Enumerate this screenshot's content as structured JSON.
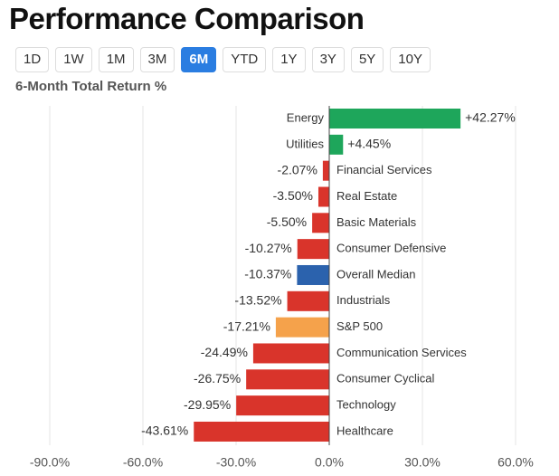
{
  "header": {
    "title": "Performance Comparison"
  },
  "periods": [
    "1D",
    "1W",
    "1M",
    "3M",
    "6M",
    "YTD",
    "1Y",
    "3Y",
    "5Y",
    "10Y"
  ],
  "selected_period": "6M",
  "chart_data": {
    "type": "bar",
    "orientation": "horizontal",
    "title": "6-Month Total Return %",
    "categories": [
      "Energy",
      "Utilities",
      "Financial Services",
      "Real Estate",
      "Basic Materials",
      "Consumer Defensive",
      "Overall Median",
      "Industrials",
      "S&P 500",
      "Communication Services",
      "Consumer Cyclical",
      "Technology",
      "Healthcare"
    ],
    "values": [
      42.27,
      4.45,
      -2.07,
      -3.5,
      -5.5,
      -10.27,
      -10.37,
      -13.52,
      -17.21,
      -24.49,
      -26.75,
      -29.95,
      -43.61
    ],
    "value_labels": [
      "+42.27%",
      "+4.45%",
      "-2.07%",
      "-3.50%",
      "-5.50%",
      "-10.27%",
      "-10.37%",
      "-13.52%",
      "-17.21%",
      "-24.49%",
      "-26.75%",
      "-29.95%",
      "-43.61%"
    ],
    "colors": [
      "#1ea65b",
      "#1ea65b",
      "#d9342b",
      "#d9342b",
      "#d9342b",
      "#d9342b",
      "#2b62ad",
      "#d9342b",
      "#f5a24b",
      "#d9342b",
      "#d9342b",
      "#d9342b",
      "#d9342b"
    ],
    "xlim": [
      -90,
      60
    ],
    "xticks": [
      {
        "value": -90,
        "label": "-90.0%"
      },
      {
        "value": -60,
        "label": "-60.0%"
      },
      {
        "value": -30,
        "label": "-30.0%"
      },
      {
        "value": 0,
        "label": "0.0%"
      },
      {
        "value": 30,
        "label": "30.0%"
      },
      {
        "value": 60,
        "label": "60.0%"
      }
    ],
    "grid": true
  }
}
